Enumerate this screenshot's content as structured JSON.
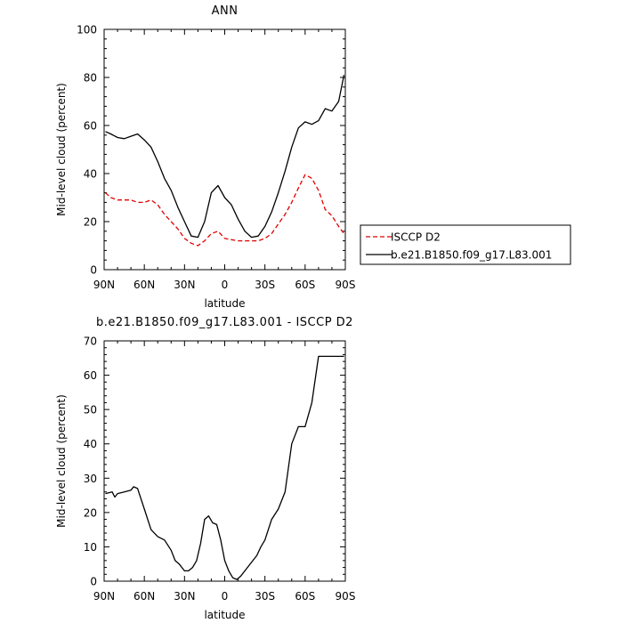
{
  "chart_data": [
    {
      "type": "line",
      "title": "ANN",
      "xlabel": "latitude",
      "ylabel": "Mid-level cloud (percent)",
      "xlim": [
        90,
        -90
      ],
      "ylim": [
        0,
        100
      ],
      "yticks": [
        0,
        20,
        40,
        60,
        80,
        100
      ],
      "xticks": [
        {
          "v": 90,
          "label": "90N"
        },
        {
          "v": 60,
          "label": "60N"
        },
        {
          "v": 30,
          "label": "30N"
        },
        {
          "v": 0,
          "label": "0"
        },
        {
          "v": -30,
          "label": "30S"
        },
        {
          "v": -60,
          "label": "60S"
        },
        {
          "v": -90,
          "label": "90S"
        }
      ],
      "legend_position": "right",
      "series": [
        {
          "name": "ISCCP D2",
          "color": "#e00000",
          "dash": "dashed",
          "x": [
            89,
            85,
            80,
            75,
            70,
            65,
            60,
            55,
            50,
            45,
            40,
            35,
            30,
            25,
            20,
            15,
            10,
            5,
            0,
            -5,
            -10,
            -15,
            -20,
            -25,
            -30,
            -35,
            -40,
            -45,
            -50,
            -55,
            -60,
            -65,
            -70,
            -75,
            -80,
            -85,
            -89
          ],
          "y": [
            32,
            30,
            29,
            29,
            29,
            28,
            28,
            29,
            27,
            23,
            20,
            17,
            13,
            11,
            10,
            12,
            15,
            16,
            13,
            12.5,
            12,
            12,
            12,
            12,
            13,
            15,
            19,
            23,
            28,
            34,
            39.5,
            38,
            33,
            25,
            22.5,
            18,
            15
          ]
        },
        {
          "name": "b.e21.B1850.f09_g17.L83.001",
          "color": "#000000",
          "dash": "solid",
          "x": [
            89,
            85,
            80,
            75,
            70,
            65,
            60,
            55,
            50,
            45,
            40,
            35,
            30,
            25,
            20,
            15,
            10,
            5,
            0,
            -5,
            -10,
            -15,
            -20,
            -25,
            -30,
            -35,
            -40,
            -45,
            -50,
            -55,
            -60,
            -65,
            -70,
            -75,
            -80,
            -85,
            -89
          ],
          "y": [
            57.5,
            56.5,
            55,
            54.5,
            55.5,
            56.5,
            54,
            51,
            45,
            38,
            33,
            26,
            20,
            14,
            13.5,
            20,
            32,
            35,
            30,
            27,
            21,
            16,
            13.5,
            14,
            18,
            24,
            32,
            41,
            51,
            59,
            61.5,
            60.5,
            62,
            67,
            66,
            70,
            81
          ]
        }
      ]
    },
    {
      "type": "line",
      "title": "b.e21.B1850.f09_g17.L83.001 - ISCCP D2",
      "xlabel": "latitude",
      "ylabel": "Mid-level cloud (percent)",
      "xlim": [
        90,
        -90
      ],
      "ylim": [
        0,
        70
      ],
      "yticks": [
        0,
        10,
        20,
        30,
        40,
        50,
        60,
        70
      ],
      "xticks": [
        {
          "v": 90,
          "label": "90N"
        },
        {
          "v": 60,
          "label": "60N"
        },
        {
          "v": 30,
          "label": "30N"
        },
        {
          "v": 0,
          "label": "0"
        },
        {
          "v": -30,
          "label": "30S"
        },
        {
          "v": -60,
          "label": "60S"
        },
        {
          "v": -90,
          "label": "90S"
        }
      ],
      "series": [
        {
          "color": "#000000",
          "dash": "solid",
          "x": [
            89,
            84,
            82,
            80,
            75,
            70,
            68,
            65,
            60,
            55,
            50,
            45,
            40,
            37,
            34,
            30,
            27,
            24,
            21,
            18,
            15,
            12,
            9,
            6,
            3,
            0,
            -3,
            -6,
            -9,
            -12,
            -15,
            -18,
            -21,
            -24,
            -27,
            -30,
            -35,
            -40,
            -45,
            -50,
            -55,
            -60,
            -65,
            -70,
            -75,
            -80,
            -84,
            -87,
            -89
          ],
          "y": [
            25.5,
            26,
            24.5,
            25.5,
            26,
            26.5,
            27.5,
            27,
            21,
            15,
            13,
            12,
            9,
            6,
            5,
            3,
            3,
            4,
            6,
            11,
            18,
            19,
            17,
            16.5,
            12,
            6,
            3,
            1,
            0.5,
            1.5,
            3,
            4.5,
            6,
            7.5,
            10,
            12,
            18,
            21,
            26,
            40,
            45,
            45,
            52,
            65.5,
            65.5,
            65.5,
            65.5,
            65.5,
            65.5
          ]
        }
      ]
    }
  ]
}
